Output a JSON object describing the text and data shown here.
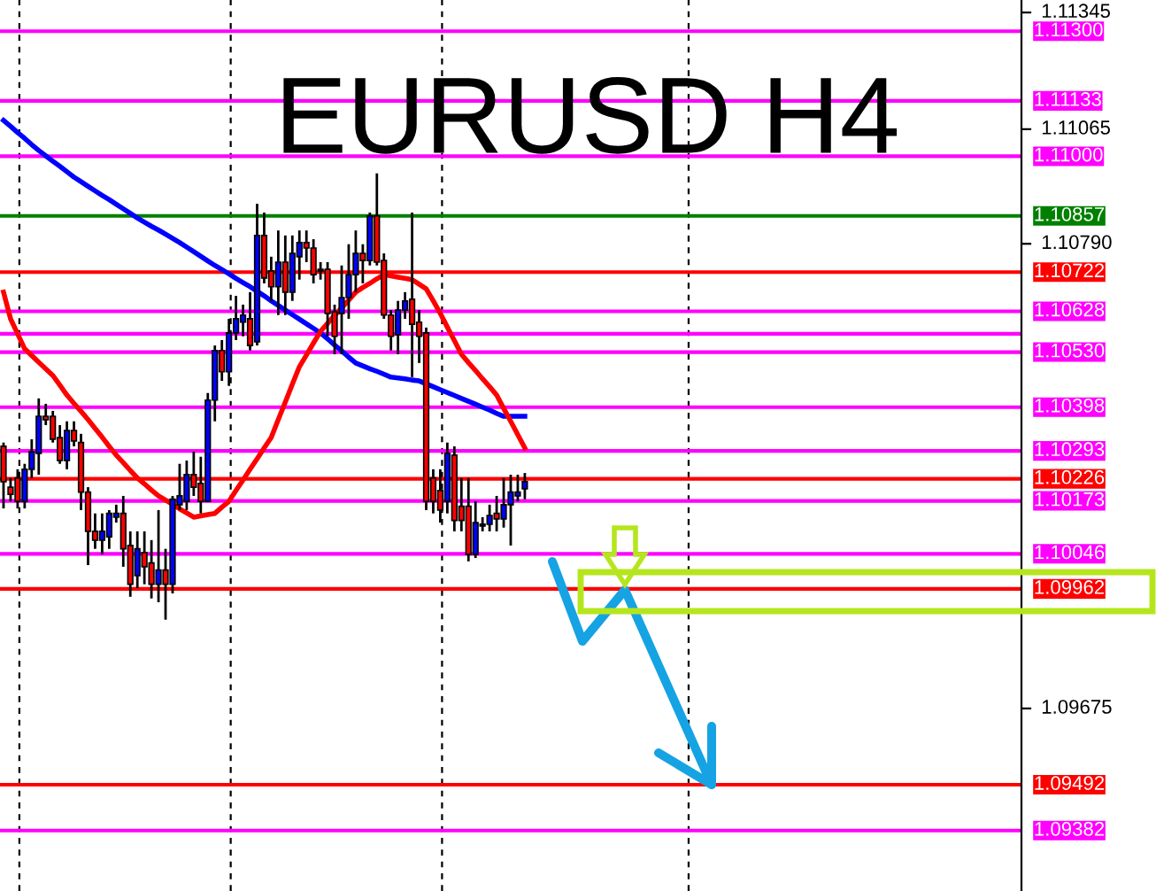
{
  "chart_data": {
    "type": "candlestick",
    "title": "EURUSD H4",
    "categories": [
      null,
      null,
      null,
      null,
      null,
      null,
      null,
      null,
      null,
      null,
      null,
      null,
      null,
      null,
      null,
      null,
      null,
      null,
      null,
      null,
      null,
      null,
      null,
      null,
      null,
      null,
      null,
      null,
      null,
      null,
      null,
      null,
      null,
      null,
      null,
      null,
      null,
      null,
      null,
      null,
      null,
      null,
      null,
      null,
      null,
      null,
      null,
      null,
      null,
      null,
      null,
      null,
      null,
      null,
      null,
      null,
      null,
      null,
      null,
      null,
      null,
      null,
      null,
      null,
      null,
      null,
      null,
      null,
      null,
      null,
      null,
      null,
      null,
      null,
      null,
      null,
      null,
      null,
      null,
      null,
      null,
      null,
      null,
      null,
      null,
      null,
      null,
      null,
      null,
      null,
      null,
      null,
      null,
      null,
      null,
      null,
      null,
      null,
      null,
      null,
      null,
      null,
      null,
      null,
      null,
      null,
      null,
      null,
      null,
      null,
      null,
      null,
      null,
      null,
      null,
      null,
      null,
      null,
      null,
      null,
      null,
      null,
      null,
      null,
      null,
      null,
      null,
      null,
      null,
      null,
      null,
      null,
      null,
      null,
      null,
      null,
      null,
      null,
      null,
      null,
      null,
      null,
      null,
      null,
      null
    ],
    "ohlc": [
      [
        1.10304,
        1.10313,
        1.10155,
        1.10219
      ],
      [
        1.10206,
        1.10228,
        1.10172,
        1.10189
      ],
      [
        1.10228,
        1.10249,
        1.10155,
        1.10172
      ],
      [
        1.10172,
        1.10262,
        1.10155,
        1.10249
      ],
      [
        1.10249,
        1.10321,
        1.10228,
        1.10291
      ],
      [
        1.10287,
        1.10419,
        1.10236,
        1.10376
      ],
      [
        1.10376,
        1.10406,
        1.10355,
        1.10368
      ],
      [
        1.10376,
        1.10389,
        1.10313,
        1.10321
      ],
      [
        1.10325,
        1.10355,
        1.10262,
        1.1027
      ],
      [
        1.1027,
        1.10364,
        1.10249,
        1.10342
      ],
      [
        1.10342,
        1.10364,
        1.10304,
        1.10317
      ],
      [
        1.10313,
        1.10334,
        1.10151,
        1.10194
      ],
      [
        1.10194,
        1.10206,
        1.10019,
        1.101
      ],
      [
        1.101,
        1.10143,
        1.10058,
        1.10079
      ],
      [
        1.10079,
        1.10143,
        1.10045,
        1.101
      ],
      [
        1.10087,
        1.10151,
        1.10058,
        1.10143
      ],
      [
        1.10134,
        1.10164,
        1.10121,
        1.10143
      ],
      [
        1.10143,
        1.10185,
        1.10015,
        1.10058
      ],
      [
        1.10066,
        1.101,
        1.09943,
        1.09973
      ],
      [
        1.09994,
        1.101,
        1.09964,
        1.10058
      ],
      [
        1.10049,
        1.101,
        1.09973,
        1.10015
      ],
      [
        1.10024,
        1.10079,
        1.09939,
        1.09973
      ],
      [
        1.09973,
        1.10151,
        1.0993,
        1.10007
      ],
      [
        1.10007,
        1.10058,
        1.09888,
        1.09973
      ],
      [
        1.09973,
        1.10185,
        1.09951,
        1.10177
      ],
      [
        1.10164,
        1.10262,
        1.10151,
        1.10185
      ],
      [
        1.10172,
        1.1027,
        1.10151,
        1.10236
      ],
      [
        1.10236,
        1.10291,
        1.10185,
        1.10206
      ],
      [
        1.10215,
        1.10279,
        1.10143,
        1.10172
      ],
      [
        1.10172,
        1.10432,
        1.10172,
        1.10415
      ],
      [
        1.10415,
        1.10546,
        1.10364,
        1.10534
      ],
      [
        1.10534,
        1.10559,
        1.10461,
        1.10483
      ],
      [
        1.10483,
        1.1061,
        1.10449,
        1.10576
      ],
      [
        1.10576,
        1.10665,
        1.10559,
        1.1061
      ],
      [
        1.10602,
        1.10644,
        1.10568,
        1.10619
      ],
      [
        1.1061,
        1.10674,
        1.10534,
        1.10546
      ],
      [
        1.10555,
        1.10886,
        1.10546,
        1.1081
      ],
      [
        1.1081,
        1.10865,
        1.10695,
        1.10708
      ],
      [
        1.10725,
        1.10759,
        1.10653,
        1.10687
      ],
      [
        1.10687,
        1.10822,
        1.10619,
        1.10746
      ],
      [
        1.10746,
        1.1081,
        1.10619,
        1.10674
      ],
      [
        1.10674,
        1.1081,
        1.10653,
        1.10767
      ],
      [
        1.10759,
        1.10822,
        1.10704,
        1.10793
      ],
      [
        1.10793,
        1.10822,
        1.10746,
        1.1078
      ],
      [
        1.1078,
        1.10801,
        1.10695,
        1.10716
      ],
      [
        1.10729,
        1.10746,
        1.10704,
        1.10725
      ],
      [
        1.10729,
        1.10746,
        1.10568,
        1.10623
      ],
      [
        1.10627,
        1.10644,
        1.10525,
        1.10568
      ],
      [
        1.10623,
        1.10738,
        1.10525,
        1.10661
      ],
      [
        1.10661,
        1.10789,
        1.1061,
        1.10716
      ],
      [
        1.10716,
        1.10822,
        1.10674,
        1.10767
      ],
      [
        1.10767,
        1.10789,
        1.10695,
        1.1075
      ],
      [
        1.1075,
        1.10865,
        1.10738,
        1.10857
      ],
      [
        1.10857,
        1.10959,
        1.10738,
        1.10746
      ],
      [
        1.1075,
        1.10767,
        1.1061,
        1.10619
      ],
      [
        1.10619,
        1.10631,
        1.10534,
        1.10568
      ],
      [
        1.10572,
        1.10653,
        1.10525,
        1.10631
      ],
      [
        1.10631,
        1.10674,
        1.1061,
        1.10653
      ],
      [
        1.10657,
        1.10865,
        1.1047,
        1.10597
      ],
      [
        1.10602,
        1.10631,
        1.10504,
        1.10568
      ],
      [
        1.10576,
        1.10589,
        1.10151,
        1.10172
      ],
      [
        1.10228,
        1.10249,
        1.10143,
        1.10172
      ],
      [
        1.10198,
        1.10249,
        1.10121,
        1.10151
      ],
      [
        1.10172,
        1.10313,
        1.10143,
        1.10287
      ],
      [
        1.10283,
        1.10304,
        1.101,
        1.10126
      ],
      [
        1.1016,
        1.10228,
        1.101,
        1.10126
      ],
      [
        1.1016,
        1.10228,
        1.10028,
        1.10045
      ],
      [
        1.10045,
        1.10172,
        1.10036,
        1.10121
      ],
      [
        1.10113,
        1.10134,
        1.101,
        1.10117
      ],
      [
        1.10117,
        1.10164,
        1.101,
        1.10138
      ],
      [
        1.10143,
        1.10185,
        1.101,
        1.1013
      ],
      [
        1.1013,
        1.10228,
        1.10109,
        1.10164
      ],
      [
        1.10164,
        1.10236,
        1.10066,
        1.10194
      ],
      [
        1.10185,
        1.10236,
        1.10172,
        1.10194
      ],
      [
        1.10202,
        1.1024,
        1.10177,
        1.10219
      ],
      null,
      null,
      null,
      null,
      null,
      null,
      null,
      null,
      null,
      null,
      null,
      null,
      null,
      null,
      null,
      null,
      null,
      null,
      null,
      null,
      null,
      null,
      null,
      null,
      null,
      null,
      null,
      null,
      null,
      null,
      null,
      null,
      null,
      null,
      null,
      null,
      null,
      null,
      null,
      null,
      null,
      null,
      null,
      null,
      null,
      null,
      null,
      null,
      null,
      null,
      null,
      null,
      null,
      null,
      null,
      null,
      null,
      null,
      null,
      null,
      null,
      null,
      null,
      null,
      null,
      null,
      null,
      null,
      null,
      null
    ],
    "colors": [
      "#ff0000",
      "#ff0000",
      "#ff0000",
      "#0000ff",
      "#0000ff",
      "#0000ff",
      "#ff0000",
      "#ff0000",
      "#ff0000",
      "#0000ff",
      "#ff0000",
      "#ff0000",
      "#ff0000",
      "#ff0000",
      "#0000ff",
      "#0000ff",
      "#0000ff",
      "#ff0000",
      "#ff0000",
      "#0000ff",
      "#ff0000",
      "#ff0000",
      "#0000ff",
      "#ff0000",
      "#0000ff",
      "#0000ff",
      "#0000ff",
      "#ff0000",
      "#ff0000",
      "#0000ff",
      "#0000ff",
      "#ff0000",
      "#0000ff",
      "#0000ff",
      "#0000ff",
      "#ff0000",
      "#0000ff",
      "#ff0000",
      "#ff0000",
      "#0000ff",
      "#ff0000",
      "#0000ff",
      "#0000ff",
      "#ff0000",
      "#ff0000",
      "#ff0000",
      "#ff0000",
      "#ff0000",
      "#0000ff",
      "#0000ff",
      "#0000ff",
      "#ff0000",
      "#0000ff",
      "#ff0000",
      "#ff0000",
      "#ff0000",
      "#0000ff",
      "#0000ff",
      "#ff0000",
      "#ff0000",
      "#ff0000",
      "#ff0000",
      "#ff0000",
      "#0000ff",
      "#ff0000",
      "#ff0000",
      "#ff0000",
      "#0000ff",
      "#0000ff",
      "#0000ff",
      "#ff0000",
      "#0000ff",
      "#0000ff",
      "#0000ff",
      "#0000ff",
      null,
      null,
      null,
      null,
      null,
      null,
      null,
      null,
      null,
      null,
      null,
      null,
      null,
      null,
      null,
      null,
      null,
      null,
      null,
      null,
      null,
      null,
      null,
      null,
      null,
      null,
      null,
      null,
      null,
      null,
      null,
      null,
      null,
      null,
      null,
      null,
      null,
      null,
      null,
      null,
      null,
      null,
      null,
      null,
      null,
      null,
      null,
      null,
      null,
      null,
      null,
      null,
      null,
      null,
      null,
      null,
      null,
      null,
      null,
      null,
      null,
      null,
      null,
      null,
      null,
      null,
      null,
      null,
      null,
      null
    ],
    "series": [
      {
        "type": "line",
        "color": "#0000ff",
        "values": [
          1.11086,
          1.11072,
          1.11057,
          1.11043,
          1.11028,
          1.11014,
          1.11001,
          1.10988,
          1.10976,
          1.10963,
          1.1095,
          1.10939,
          1.10928,
          1.10917,
          1.10906,
          1.10896,
          1.10885,
          1.10874,
          1.10863,
          1.10852,
          1.10842,
          1.10832,
          1.10823,
          1.10813,
          1.10803,
          1.10793,
          1.10782,
          1.10771,
          1.1076,
          1.10749,
          1.10738,
          1.10728,
          1.10718,
          1.10707,
          1.10697,
          1.10687,
          1.10676,
          1.10665,
          1.10653,
          1.10642,
          1.10631,
          1.1062,
          1.10609,
          1.10598,
          1.10587,
          1.10576,
          1.10562,
          1.10547,
          1.10533,
          1.10518,
          1.10504,
          1.10497,
          1.1049,
          1.10484,
          1.10477,
          1.1047,
          1.10468,
          1.10466,
          1.10463,
          1.10461,
          1.10454,
          1.10447,
          1.1044,
          1.10433,
          1.10426,
          1.10419,
          1.10412,
          1.10405,
          1.10398,
          1.10391,
          1.10383,
          1.10376,
          1.10376,
          1.10376,
          1.10376,
          null,
          null,
          null,
          null,
          null,
          null,
          null,
          null,
          null,
          null,
          null,
          null,
          null,
          null,
          null,
          null,
          null,
          null,
          null,
          null,
          null,
          null,
          null,
          null,
          null,
          null,
          null,
          null,
          null,
          null,
          null,
          null,
          null,
          null,
          null,
          null,
          null,
          null,
          null,
          null,
          null,
          null,
          null,
          null,
          null,
          null,
          null,
          null,
          null,
          null,
          null,
          null,
          null,
          null,
          null,
          null,
          null,
          null,
          null,
          null,
          null,
          null,
          null,
          null,
          null,
          null,
          null,
          null,
          null,
          null
        ]
      },
      {
        "type": "line",
        "color": "#ff0000",
        "values": [
          1.10674,
          1.1061,
          1.10574,
          1.10538,
          1.10522,
          1.10506,
          1.1049,
          1.10474,
          1.10451,
          1.10427,
          1.10407,
          1.10388,
          1.10368,
          1.10347,
          1.10326,
          1.10304,
          1.10283,
          1.10265,
          1.10246,
          1.10228,
          1.10214,
          1.10199,
          1.10185,
          1.10175,
          1.10165,
          1.10154,
          1.10144,
          1.10134,
          1.10137,
          1.1014,
          1.10143,
          1.10158,
          1.10172,
          1.10198,
          1.10223,
          1.10249,
          1.10274,
          1.103,
          1.10325,
          1.10368,
          1.1041,
          1.10453,
          1.10495,
          1.10523,
          1.10552,
          1.1058,
          1.10599,
          1.10618,
          1.10636,
          1.10655,
          1.10674,
          1.10685,
          1.10695,
          1.10706,
          1.10716,
          1.10713,
          1.1071,
          1.10707,
          1.10704,
          1.10693,
          1.10682,
          1.10653,
          1.10623,
          1.1059,
          1.10558,
          1.10525,
          1.10505,
          1.10486,
          1.10466,
          1.10447,
          1.10427,
          1.10395,
          1.10364,
          1.10332,
          1.103,
          null,
          null,
          null,
          null,
          null,
          null,
          null,
          null,
          null,
          null,
          null,
          null,
          null,
          null,
          null,
          null,
          null,
          null,
          null,
          null,
          null,
          null,
          null,
          null,
          null,
          null,
          null,
          null,
          null,
          null,
          null,
          null,
          null,
          null,
          null,
          null,
          null,
          null,
          null,
          null,
          null,
          null,
          null,
          null,
          null,
          null,
          null,
          null,
          null,
          null,
          null,
          null,
          null,
          null,
          null,
          null,
          null,
          null,
          null,
          null,
          null,
          null,
          null,
          null,
          null,
          null,
          null,
          null,
          null,
          null
        ]
      }
    ],
    "ylim": [
      1.09237,
      1.11375
    ],
    "yticks": [
      1.11345,
      1.11065,
      {
        "value": 1.1079,
        "label": "1.10790"
      },
      1.09675
    ],
    "tick_labels": "y",
    "ref_lines": [
      {
        "axis": "y",
        "value": 1.113,
        "label": "1.11300",
        "color": "#ff00ff"
      },
      {
        "axis": "y",
        "value": 1.11133,
        "label": "1.11133",
        "color": "#ff00ff"
      },
      {
        "axis": "y",
        "value": 1.11,
        "label": "1.11000",
        "color": "#ff00ff"
      },
      {
        "axis": "y",
        "value": 1.10857,
        "label": "1.10857",
        "color": "#008000"
      },
      {
        "axis": "y",
        "value": 1.10722,
        "label": "1.10722",
        "color": "#ff0000"
      },
      {
        "axis": "y",
        "value": 1.10628,
        "label": "1.10628",
        "color": "#ff00ff"
      },
      {
        "axis": "y",
        "value": 1.10574,
        "label": null,
        "color": "#ff00ff"
      },
      {
        "axis": "y",
        "value": 1.1053,
        "label": "1.10530",
        "color": "#ff00ff"
      },
      {
        "axis": "y",
        "value": 1.10398,
        "label": "1.10398",
        "color": "#ff00ff"
      },
      {
        "axis": "y",
        "value": 1.10293,
        "label": "1.10293",
        "color": "#ff00ff"
      },
      {
        "axis": "y",
        "value": 1.10226,
        "label": "1.10226",
        "color": "#ff0000"
      },
      {
        "axis": "y",
        "value": 1.10173,
        "label": "1.10173",
        "color": "#ff00ff"
      },
      {
        "axis": "y",
        "value": 1.10046,
        "label": "1.10046",
        "color": "#ff00ff"
      },
      {
        "axis": "y",
        "value": 1.09962,
        "label": "1.09962",
        "color": "#ff0000"
      },
      {
        "axis": "y",
        "value": 1.09492,
        "label": "1.09492",
        "color": "#ff0000"
      },
      {
        "axis": "y",
        "value": 1.09382,
        "label": "1.09382",
        "color": "#ff00ff"
      }
    ]
  }
}
